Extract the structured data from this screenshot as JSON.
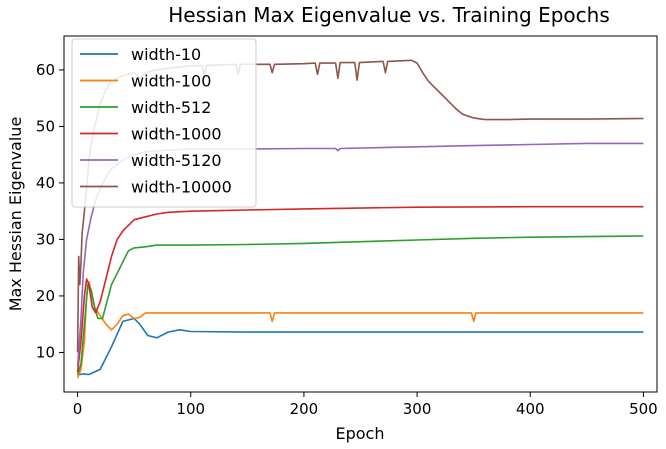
{
  "chart_data": {
    "type": "line",
    "title": "Hessian Max Eigenvalue vs. Training Epochs",
    "xlabel": "Epoch",
    "ylabel": "Max Hessian Eigenvalue",
    "xlim": [
      -12,
      512
    ],
    "ylim": [
      3,
      66
    ],
    "xticks": [
      0,
      100,
      200,
      300,
      400,
      500
    ],
    "yticks": [
      10,
      20,
      30,
      40,
      50,
      60
    ],
    "grid": false,
    "legend_position": "top-left",
    "series": [
      {
        "name": "width-10",
        "color": "#1f77b4",
        "points": [
          [
            0,
            6
          ],
          [
            5,
            6.2
          ],
          [
            10,
            6.1
          ],
          [
            20,
            7
          ],
          [
            30,
            11
          ],
          [
            40,
            15.5
          ],
          [
            50,
            16
          ],
          [
            55,
            15
          ],
          [
            62,
            13
          ],
          [
            70,
            12.6
          ],
          [
            80,
            13.6
          ],
          [
            90,
            14
          ],
          [
            100,
            13.7
          ],
          [
            150,
            13.6
          ],
          [
            200,
            13.6
          ],
          [
            300,
            13.6
          ],
          [
            400,
            13.6
          ],
          [
            500,
            13.6
          ]
        ]
      },
      {
        "name": "width-100",
        "color": "#ff7f0e",
        "points": [
          [
            0,
            5.5
          ],
          [
            3,
            7
          ],
          [
            6,
            12
          ],
          [
            8,
            20
          ],
          [
            10,
            22.5
          ],
          [
            12,
            21
          ],
          [
            15,
            18
          ],
          [
            20,
            16.5
          ],
          [
            25,
            15
          ],
          [
            30,
            14
          ],
          [
            35,
            15
          ],
          [
            40,
            16.5
          ],
          [
            45,
            16.8
          ],
          [
            50,
            16
          ],
          [
            55,
            16.2
          ],
          [
            60,
            17
          ],
          [
            70,
            17
          ],
          [
            100,
            17
          ],
          [
            170,
            17
          ],
          [
            172,
            15.5
          ],
          [
            174,
            17
          ],
          [
            250,
            17
          ],
          [
            300,
            17
          ],
          [
            348,
            17
          ],
          [
            350,
            15.5
          ],
          [
            352,
            17
          ],
          [
            400,
            17
          ],
          [
            500,
            17
          ]
        ]
      },
      {
        "name": "width-512",
        "color": "#2ca02c",
        "points": [
          [
            0,
            6
          ],
          [
            3,
            8
          ],
          [
            6,
            15
          ],
          [
            9,
            22
          ],
          [
            12,
            21
          ],
          [
            15,
            18
          ],
          [
            18,
            16
          ],
          [
            22,
            16
          ],
          [
            26,
            19
          ],
          [
            30,
            22
          ],
          [
            35,
            24
          ],
          [
            40,
            26
          ],
          [
            45,
            28
          ],
          [
            50,
            28.5
          ],
          [
            60,
            28.7
          ],
          [
            70,
            29
          ],
          [
            80,
            29
          ],
          [
            100,
            29
          ],
          [
            150,
            29.1
          ],
          [
            200,
            29.3
          ],
          [
            250,
            29.6
          ],
          [
            300,
            29.9
          ],
          [
            350,
            30.2
          ],
          [
            400,
            30.4
          ],
          [
            450,
            30.5
          ],
          [
            500,
            30.6
          ]
        ]
      },
      {
        "name": "width-1000",
        "color": "#d62728",
        "points": [
          [
            0,
            6.5
          ],
          [
            3,
            12
          ],
          [
            6,
            20
          ],
          [
            8,
            23
          ],
          [
            10,
            22
          ],
          [
            13,
            18
          ],
          [
            16,
            17
          ],
          [
            20,
            19
          ],
          [
            25,
            23
          ],
          [
            30,
            27
          ],
          [
            35,
            30
          ],
          [
            40,
            31.5
          ],
          [
            45,
            32.5
          ],
          [
            50,
            33.5
          ],
          [
            60,
            34
          ],
          [
            70,
            34.5
          ],
          [
            80,
            34.8
          ],
          [
            100,
            35
          ],
          [
            150,
            35.2
          ],
          [
            200,
            35.4
          ],
          [
            300,
            35.7
          ],
          [
            400,
            35.8
          ],
          [
            500,
            35.8
          ]
        ]
      },
      {
        "name": "width-5120",
        "color": "#9467bd",
        "points": [
          [
            0,
            7.5
          ],
          [
            3,
            16
          ],
          [
            5,
            24
          ],
          [
            8,
            30
          ],
          [
            12,
            34
          ],
          [
            16,
            37
          ],
          [
            20,
            39
          ],
          [
            25,
            41
          ],
          [
            30,
            42.5
          ],
          [
            40,
            44
          ],
          [
            50,
            45
          ],
          [
            60,
            45.5
          ],
          [
            80,
            45.8
          ],
          [
            100,
            46
          ],
          [
            150,
            46
          ],
          [
            200,
            46.1
          ],
          [
            228,
            46.1
          ],
          [
            230,
            45.7
          ],
          [
            232,
            46.1
          ],
          [
            300,
            46.4
          ],
          [
            350,
            46.6
          ],
          [
            400,
            46.8
          ],
          [
            450,
            47
          ],
          [
            500,
            47
          ]
        ]
      },
      {
        "name": "width-10000",
        "color": "#8c564b",
        "points": [
          [
            0,
            10
          ],
          [
            1,
            27
          ],
          [
            2,
            22
          ],
          [
            3,
            26
          ],
          [
            4,
            31
          ],
          [
            6,
            35
          ],
          [
            8,
            39
          ],
          [
            10,
            44
          ],
          [
            12,
            47
          ],
          [
            15,
            50
          ],
          [
            20,
            54
          ],
          [
            25,
            56.5
          ],
          [
            30,
            58
          ],
          [
            40,
            59
          ],
          [
            50,
            59.5
          ],
          [
            55,
            58.5
          ],
          [
            60,
            59.5
          ],
          [
            70,
            60
          ],
          [
            80,
            60.3
          ],
          [
            90,
            60.5
          ],
          [
            100,
            60.7
          ],
          [
            110,
            60.8
          ],
          [
            112,
            59
          ],
          [
            114,
            60.8
          ],
          [
            140,
            61
          ],
          [
            142,
            59.2
          ],
          [
            144,
            61
          ],
          [
            170,
            61
          ],
          [
            172,
            59.5
          ],
          [
            174,
            61
          ],
          [
            200,
            61.1
          ],
          [
            210,
            61.2
          ],
          [
            212,
            59.2
          ],
          [
            214,
            61.2
          ],
          [
            228,
            61.2
          ],
          [
            230,
            58.5
          ],
          [
            232,
            61.3
          ],
          [
            245,
            61.3
          ],
          [
            247,
            58.2
          ],
          [
            249,
            61.3
          ],
          [
            270,
            61.5
          ],
          [
            272,
            59.5
          ],
          [
            274,
            61.5
          ],
          [
            295,
            61.7
          ],
          [
            300,
            61.2
          ],
          [
            305,
            59.5
          ],
          [
            310,
            58
          ],
          [
            315,
            57
          ],
          [
            320,
            56
          ],
          [
            325,
            55
          ],
          [
            330,
            54
          ],
          [
            335,
            53
          ],
          [
            340,
            52.2
          ],
          [
            345,
            51.8
          ],
          [
            350,
            51.5
          ],
          [
            360,
            51.2
          ],
          [
            380,
            51.2
          ],
          [
            400,
            51.3
          ],
          [
            450,
            51.3
          ],
          [
            500,
            51.4
          ]
        ]
      }
    ]
  }
}
